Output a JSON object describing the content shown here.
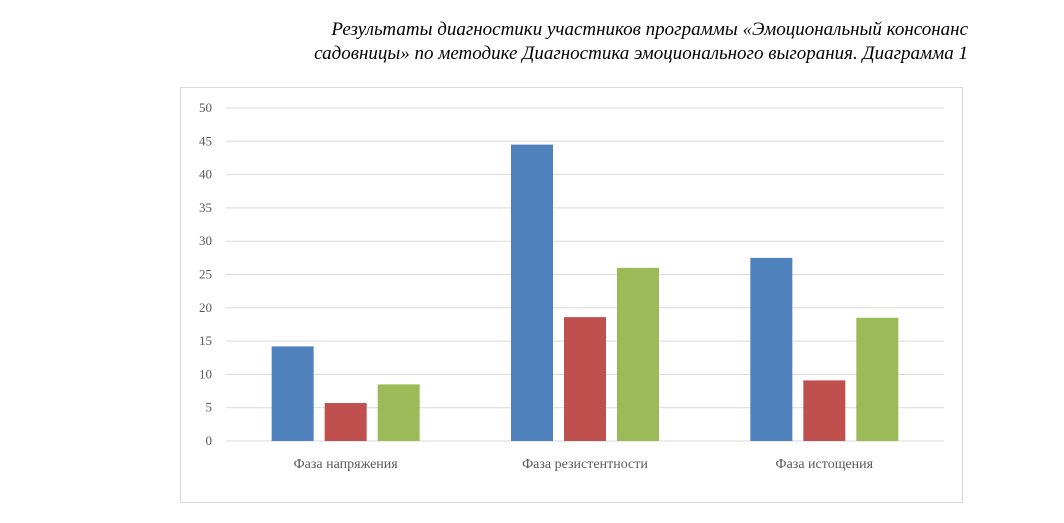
{
  "caption": {
    "line1": "Результаты диагностики участников программы «Эмоциональный консонанс",
    "line2": "садовницы» по методике Диагностика эмоционального выгорания. Диаграмма 1"
  },
  "chart_data": {
    "type": "bar",
    "title": "",
    "xlabel": "",
    "ylabel": "",
    "categories": [
      "Фаза напряжения",
      "Фаза резистентности",
      "Фаза истощения"
    ],
    "series": [
      {
        "values": [
          14.2,
          44.5,
          27.5
        ],
        "color": "#4f81bd"
      },
      {
        "values": [
          5.7,
          18.6,
          9.1
        ],
        "color": "#c0504d"
      },
      {
        "values": [
          8.5,
          26.0,
          18.5
        ],
        "color": "#9bbb59"
      }
    ],
    "ylim": [
      0,
      50
    ],
    "yticks": [
      0,
      5,
      10,
      15,
      20,
      25,
      30,
      35,
      40,
      45,
      50
    ],
    "grid": true,
    "legend": "none"
  }
}
